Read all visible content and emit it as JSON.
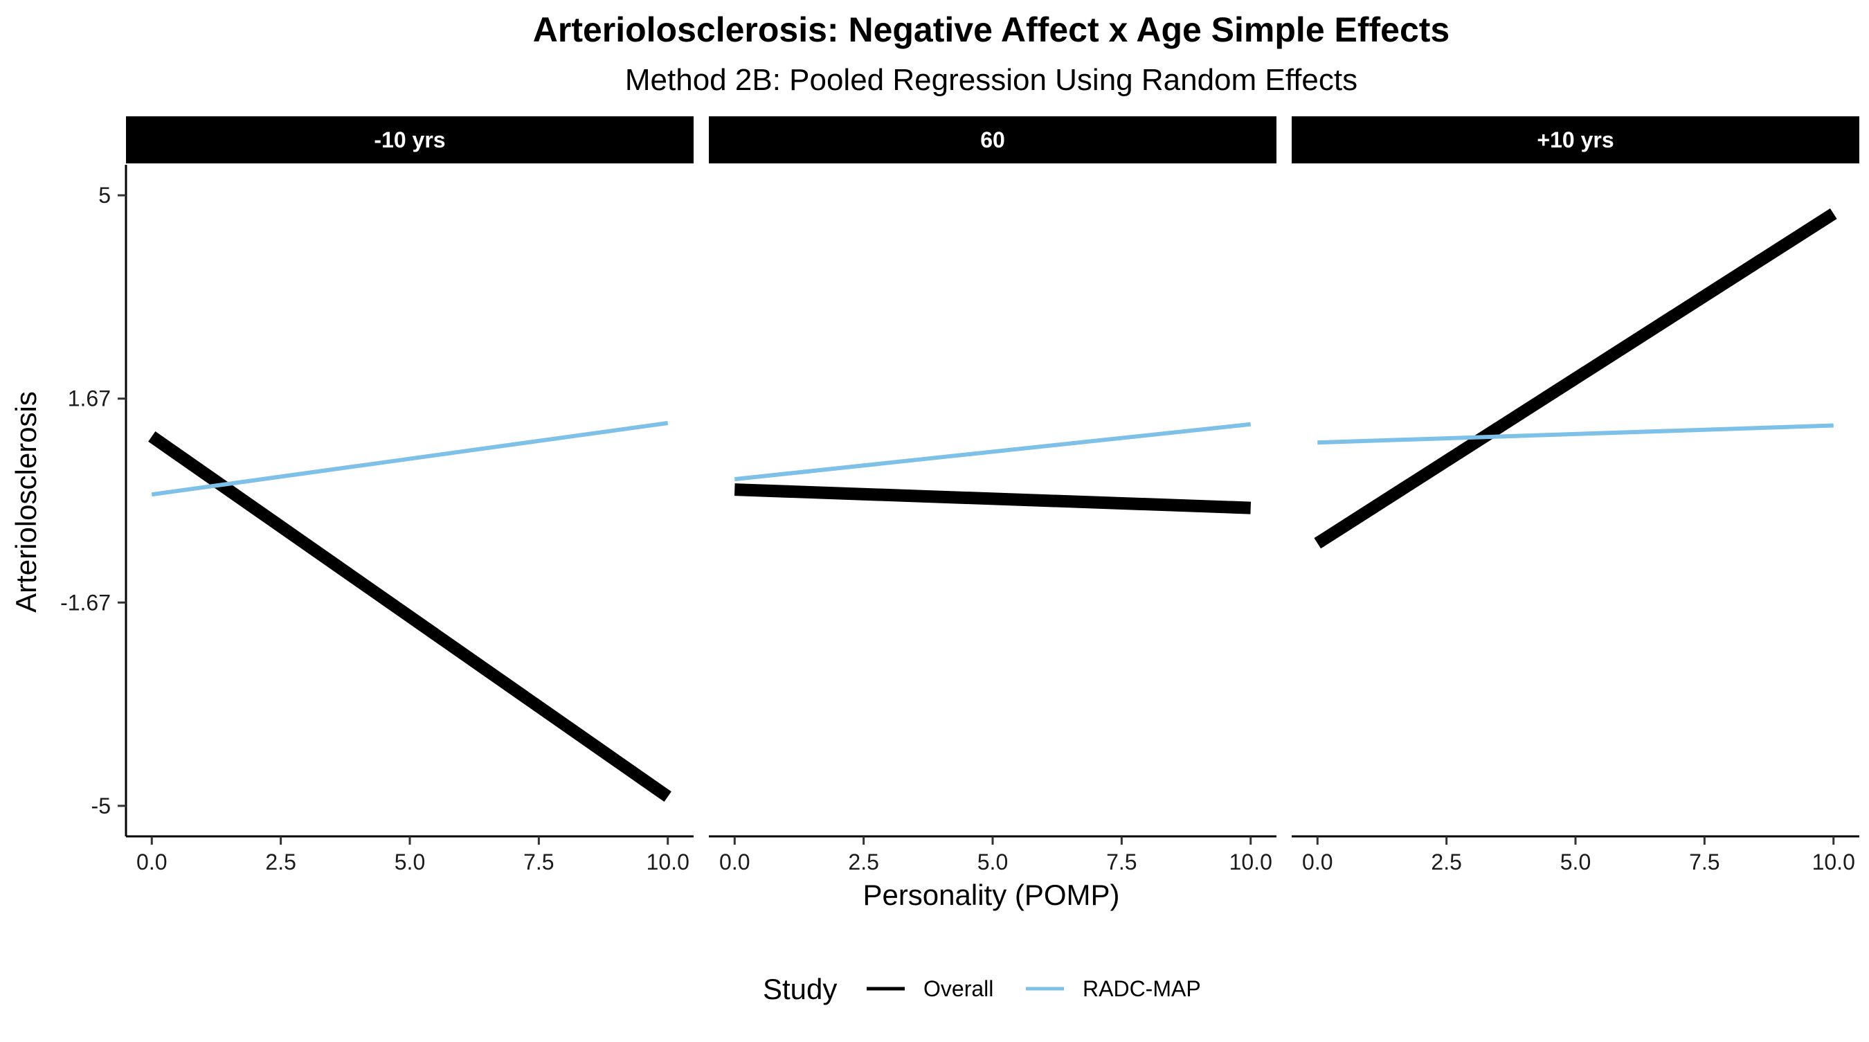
{
  "chart_data": {
    "type": "line",
    "title": "Arteriolosclerosis: Negative Affect x Age Simple Effects",
    "subtitle": "Method 2B: Pooled Regression Using Random Effects",
    "xlabel": "Personality (POMP)",
    "ylabel": "Arteriolosclerosis",
    "xlim": [
      -0.5,
      10.5
    ],
    "ylim": [
      -5.5,
      5.5
    ],
    "x_ticks": [
      0,
      2.5,
      5,
      7.5,
      10
    ],
    "x_tick_labels": [
      "0.0",
      "2.5",
      "5.0",
      "7.5",
      "10.0"
    ],
    "y_ticks": [
      5,
      1.67,
      -1.67,
      -5
    ],
    "y_tick_labels": [
      "5",
      "1.67",
      "-1.67",
      "-5"
    ],
    "grid": false,
    "legend": {
      "title": "Study",
      "position": "bottom",
      "entries": [
        "Overall",
        "RADC-MAP"
      ]
    },
    "series_styles": {
      "Overall": {
        "color": "#000000",
        "weight": "thick"
      },
      "RADC-MAP": {
        "color": "#7DC0E8",
        "weight": "thin"
      }
    },
    "panels": [
      {
        "label": "-10 yrs",
        "series": [
          {
            "name": "Overall",
            "x": [
              0,
              10
            ],
            "y": [
              1.05,
              -4.85
            ]
          },
          {
            "name": "RADC-MAP",
            "x": [
              0,
              10
            ],
            "y": [
              0.1,
              1.27
            ]
          }
        ]
      },
      {
        "label": "60",
        "series": [
          {
            "name": "Overall",
            "x": [
              0,
              10
            ],
            "y": [
              0.18,
              -0.12
            ]
          },
          {
            "name": "RADC-MAP",
            "x": [
              0,
              10
            ],
            "y": [
              0.35,
              1.25
            ]
          }
        ]
      },
      {
        "label": "+10 yrs",
        "series": [
          {
            "name": "Overall",
            "x": [
              0,
              10
            ],
            "y": [
              -0.7,
              4.7
            ]
          },
          {
            "name": "RADC-MAP",
            "x": [
              0,
              10
            ],
            "y": [
              0.95,
              1.23
            ]
          }
        ]
      }
    ]
  }
}
